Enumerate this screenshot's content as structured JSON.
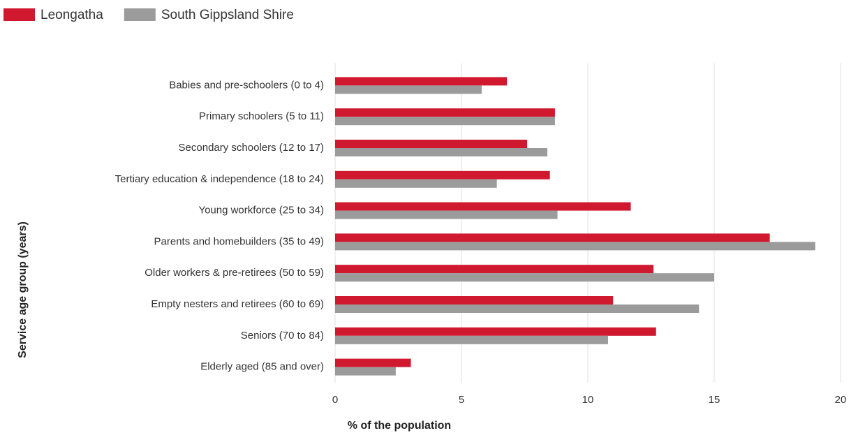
{
  "chart_data": {
    "type": "bar",
    "orientation": "horizontal",
    "categories": [
      "Babies and pre-schoolers (0 to 4)",
      "Primary schoolers (5 to 11)",
      "Secondary schoolers (12 to 17)",
      "Tertiary education & independence (18 to 24)",
      "Young workforce (25 to 34)",
      "Parents and homebuilders (35 to 49)",
      "Older workers & pre-retirees (50 to 59)",
      "Empty nesters and retirees (60 to 69)",
      "Seniors (70 to 84)",
      "Elderly aged (85 and over)"
    ],
    "series": [
      {
        "name": "Leongatha",
        "color": "#d0192f",
        "values": [
          6.8,
          8.7,
          7.6,
          8.5,
          11.7,
          17.2,
          12.6,
          11.0,
          12.7,
          3.0
        ]
      },
      {
        "name": "South Gippsland Shire",
        "color": "#9b9b9b",
        "values": [
          5.8,
          8.7,
          8.4,
          6.4,
          8.8,
          19.0,
          15.0,
          14.4,
          10.8,
          2.4
        ]
      }
    ],
    "x_label": "% of the population",
    "y_label": "Service age group (years)",
    "xlim": [
      0,
      20
    ],
    "xticks": [
      0,
      5,
      10,
      15,
      20
    ],
    "grid": true,
    "legend": "top-left"
  }
}
